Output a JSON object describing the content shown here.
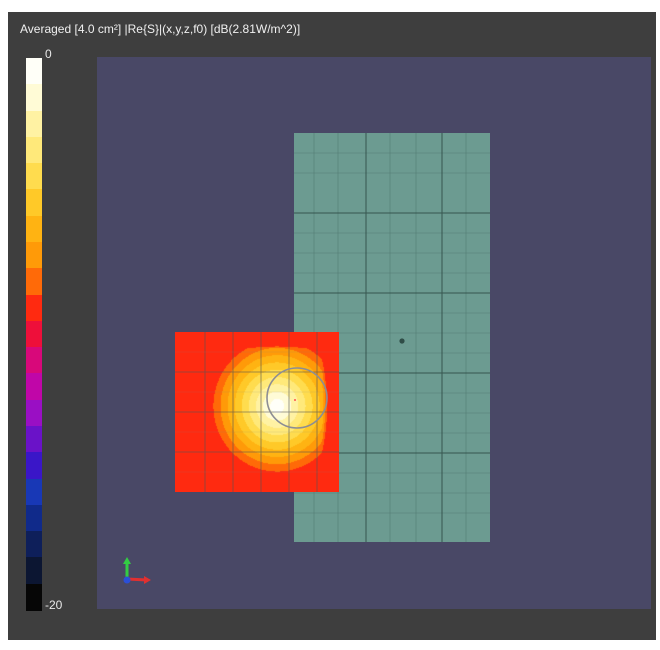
{
  "title": "Averaged [4.0 cm²]  |Re{S}|(x,y,z,f0) [dB(2.81W/m^2)]",
  "colorbar": {
    "max_label": "0",
    "min_label": "-20",
    "colors": [
      "#fffff8",
      "#fffbd6",
      "#fff2a3",
      "#ffe97a",
      "#ffdc4e",
      "#ffc928",
      "#ffb312",
      "#ff9a08",
      "#ff6a08",
      "#ff2a10",
      "#ee0f3a",
      "#d8087a",
      "#c006a8",
      "#9a0fc4",
      "#6a12c8",
      "#3a16c8",
      "#1838b6",
      "#102a8a",
      "#0e1f5a",
      "#0c1632",
      "#060606"
    ]
  },
  "heatmap": {
    "max_db": 0,
    "min_db": -20,
    "peak": [
      0.62,
      0.46
    ]
  },
  "icons": {
    "axes": "axes-triad-icon"
  }
}
